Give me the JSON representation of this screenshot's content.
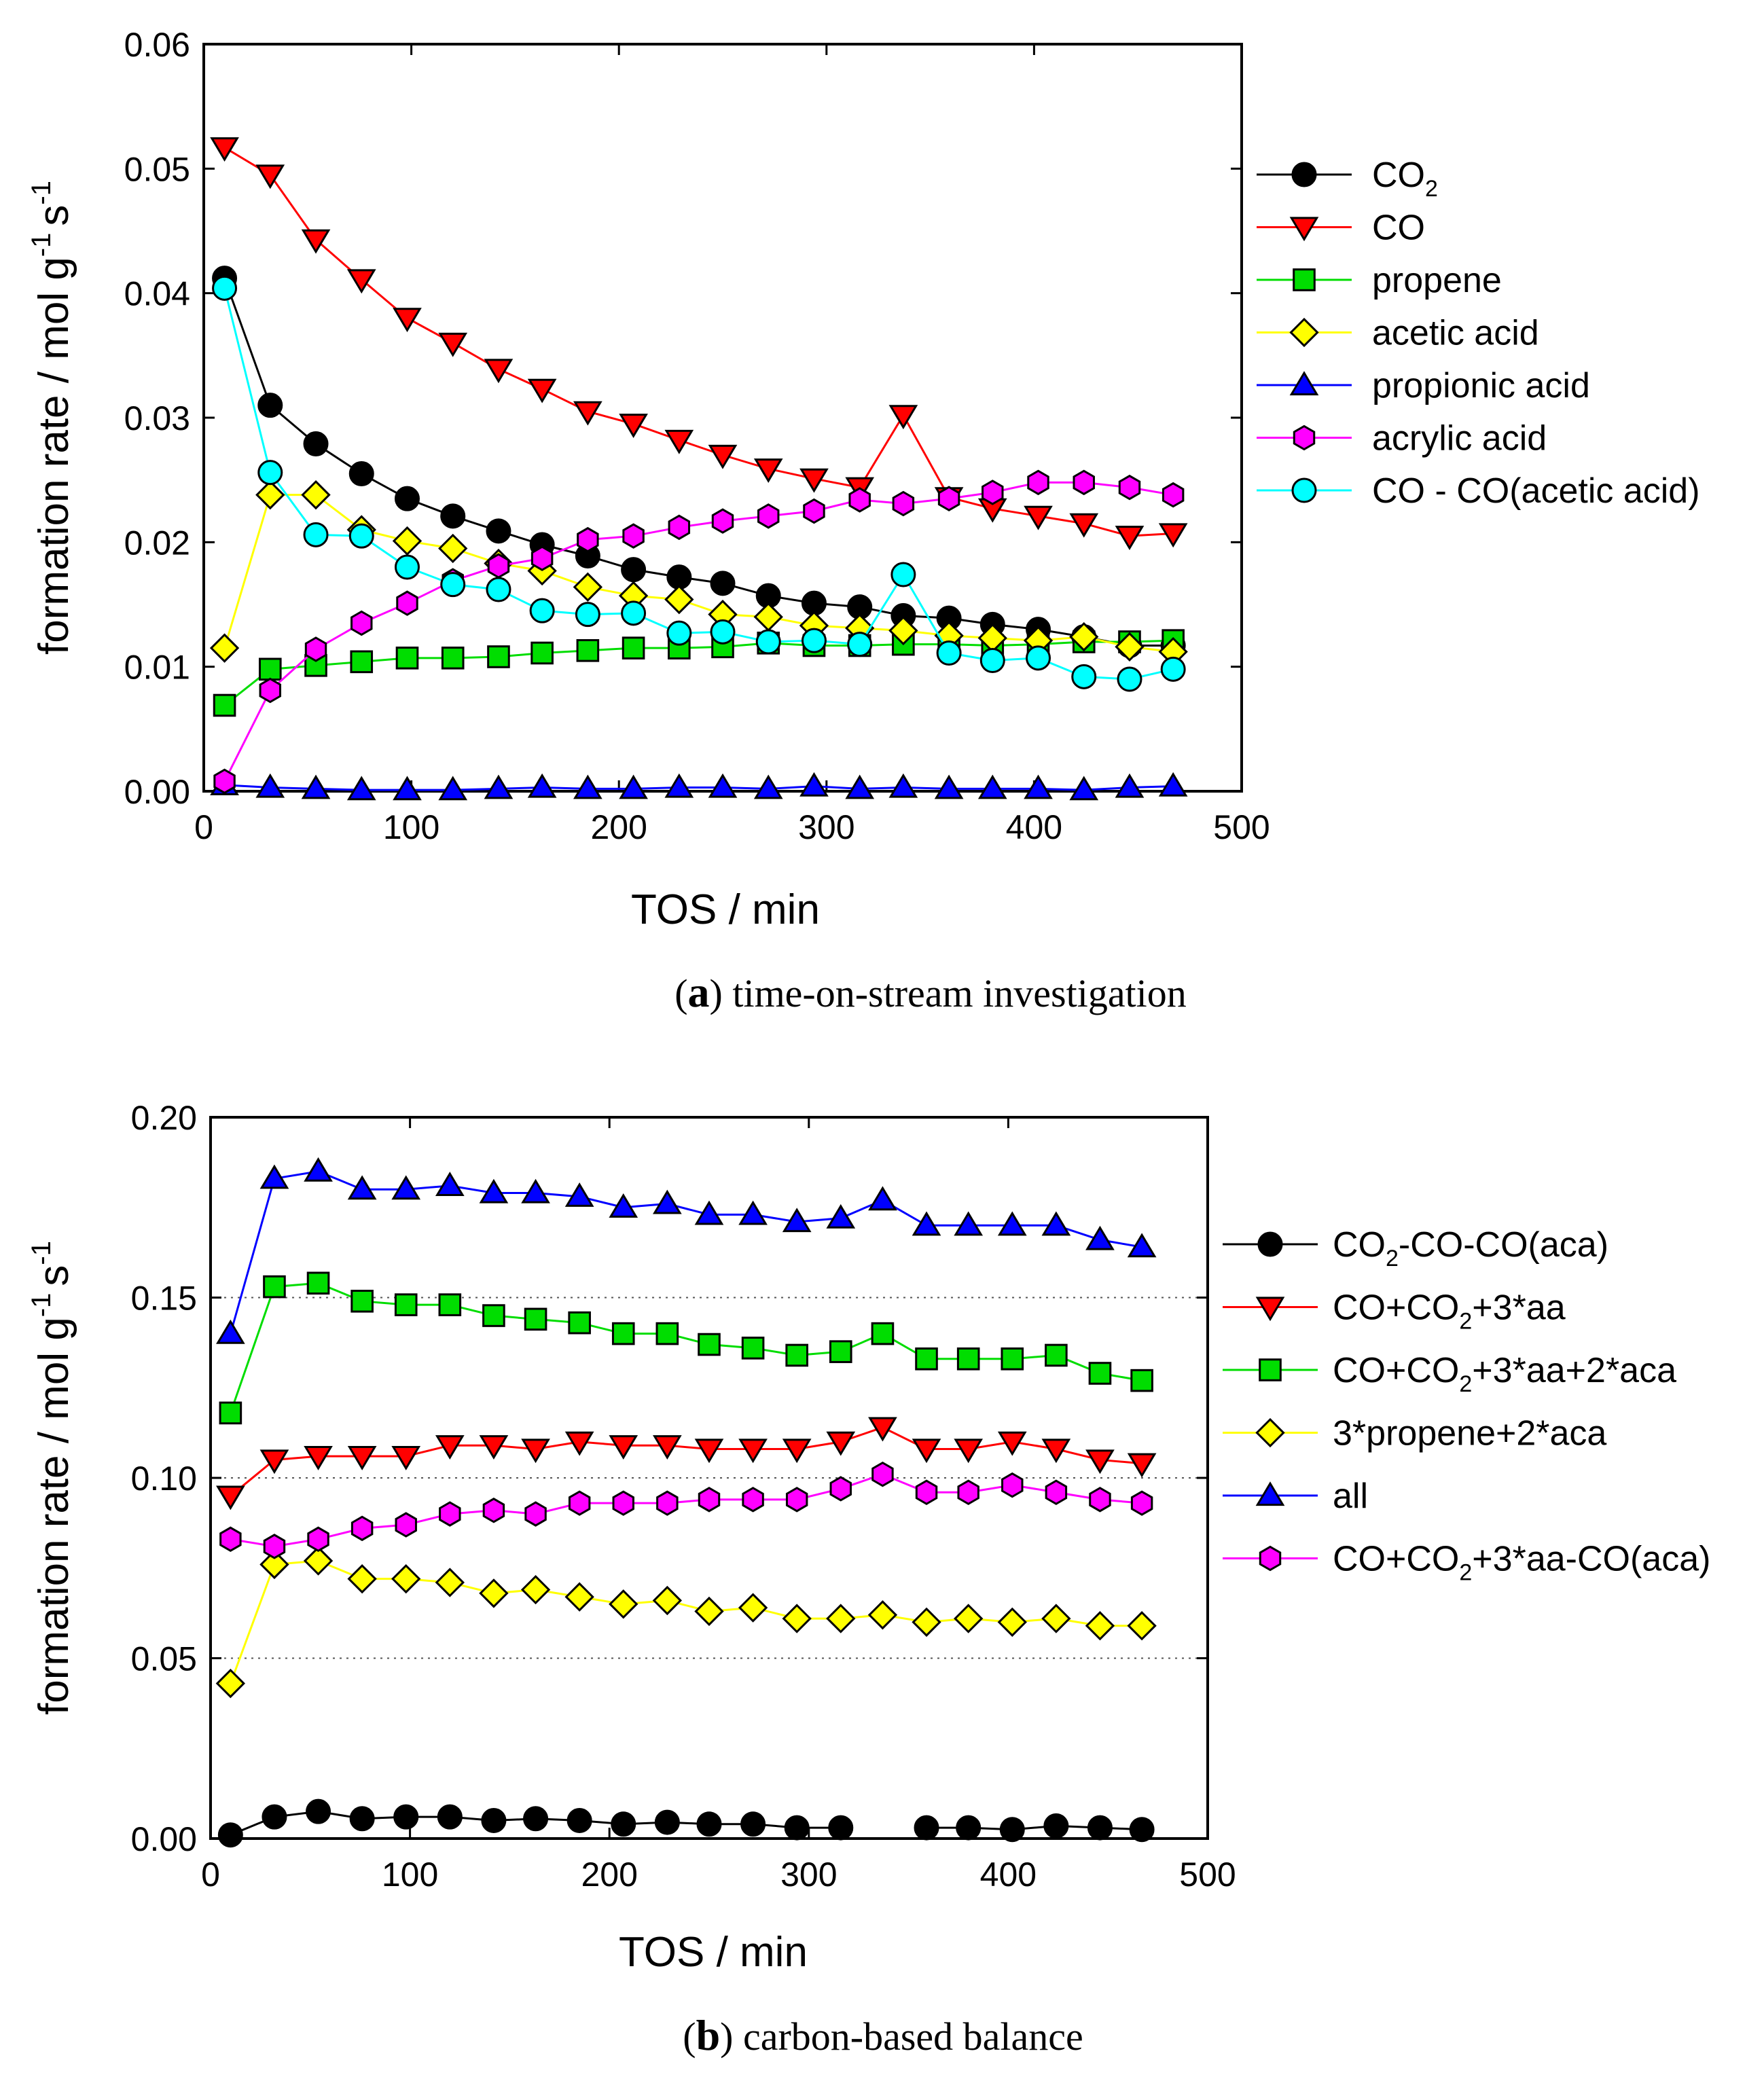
{
  "chart_data": [
    {
      "id": "a",
      "type": "line",
      "caption_letter": "a",
      "caption_text": "time-on-stream investigation",
      "xlabel": "TOS / min",
      "ylabel": "formation rate / mol g",
      "ylabel_units": [
        "-1",
        "s",
        "-1"
      ],
      "xlim": [
        0,
        500
      ],
      "ylim": [
        0,
        0.06
      ],
      "xticks": [
        "0",
        "100",
        "200",
        "300",
        "400",
        "500"
      ],
      "yticks": [
        "0.00",
        "0.01",
        "0.02",
        "0.03",
        "0.04",
        "0.05",
        "0.06"
      ],
      "legend_position": "right",
      "x": [
        10,
        32,
        54,
        76,
        98,
        120,
        142,
        163,
        185,
        207,
        229,
        250,
        272,
        294,
        316,
        337,
        359,
        380,
        402,
        424,
        446,
        467
      ],
      "series": [
        {
          "name": "CO",
          "sub": "2",
          "color": "#000000",
          "marker": "circle",
          "values": [
            0.0412,
            0.031,
            0.0279,
            0.0255,
            0.0235,
            0.0221,
            0.0209,
            0.0198,
            0.0189,
            0.0178,
            0.0172,
            0.0167,
            0.0157,
            0.0151,
            0.0148,
            0.0141,
            0.0139,
            0.0134,
            0.013,
            0.0124,
            0.0117,
            0.0117
          ]
        },
        {
          "name": "CO",
          "color": "#ff0000",
          "marker": "triangle-down",
          "values": [
            0.0517,
            0.0495,
            0.0443,
            0.0411,
            0.038,
            0.036,
            0.0339,
            0.0323,
            0.0305,
            0.0295,
            0.0282,
            0.027,
            0.0259,
            0.0251,
            0.0244,
            0.0302,
            0.0236,
            0.0227,
            0.0221,
            0.0215,
            0.0205,
            0.0207
          ]
        },
        {
          "name": "propene",
          "color": "#00dd00",
          "marker": "square",
          "values": [
            0.0069,
            0.0098,
            0.0101,
            0.0104,
            0.0107,
            0.0107,
            0.0108,
            0.0111,
            0.0113,
            0.0115,
            0.0115,
            0.0116,
            0.0119,
            0.0117,
            0.0117,
            0.0118,
            0.0118,
            0.0117,
            0.0118,
            0.012,
            0.012,
            0.0121
          ]
        },
        {
          "name": "acetic acid",
          "color": "#ffff00",
          "marker": "diamond",
          "values": [
            0.0115,
            0.0238,
            0.0238,
            0.021,
            0.0201,
            0.0195,
            0.0183,
            0.0177,
            0.0164,
            0.0157,
            0.0154,
            0.0142,
            0.014,
            0.0133,
            0.0131,
            0.0129,
            0.0125,
            0.0123,
            0.0121,
            0.0124,
            0.0116,
            0.0112
          ]
        },
        {
          "name": "propionic acid",
          "color": "#0000ff",
          "marker": "triangle-up",
          "values": [
            0.0005,
            0.0003,
            0.0002,
            0.0001,
            0.0001,
            0.0001,
            0.0002,
            0.0003,
            0.0002,
            0.0002,
            0.0003,
            0.0003,
            0.0002,
            0.0004,
            0.0002,
            0.0003,
            0.0002,
            0.0002,
            0.0002,
            0.0001,
            0.0003,
            0.0004
          ]
        },
        {
          "name": "acrylic acid",
          "color": "#ff00ff",
          "marker": "hexagon",
          "values": [
            0.0008,
            0.0081,
            0.0114,
            0.0135,
            0.0151,
            0.0169,
            0.0181,
            0.0187,
            0.0202,
            0.0205,
            0.0212,
            0.0217,
            0.0221,
            0.0225,
            0.0234,
            0.0231,
            0.0235,
            0.024,
            0.0248,
            0.0248,
            0.0244,
            0.0238
          ]
        },
        {
          "name": "CO - CO(acetic acid)",
          "color": "#00ffff",
          "marker": "circle",
          "values": [
            0.0404,
            0.0256,
            0.0206,
            0.0205,
            0.018,
            0.0166,
            0.0162,
            0.0145,
            0.0142,
            0.0143,
            0.0127,
            0.0128,
            0.012,
            0.0121,
            0.0118,
            0.0174,
            0.0111,
            0.0105,
            0.0107,
            0.0092,
            0.009,
            0.0098
          ]
        }
      ]
    },
    {
      "id": "b",
      "type": "line",
      "caption_letter": "b",
      "caption_text": "carbon-based balance",
      "xlabel": "TOS / min",
      "ylabel": "formation rate / mol g",
      "ylabel_units": [
        "-1",
        "s",
        "-1"
      ],
      "xlim": [
        0,
        500
      ],
      "ylim": [
        0,
        0.2
      ],
      "xticks": [
        "0",
        "100",
        "200",
        "300",
        "400",
        "500"
      ],
      "yticks": [
        "0.00",
        "0.05",
        "0.10",
        "0.15",
        "0.20"
      ],
      "gridlines_y": [
        0.05,
        0.1,
        0.15
      ],
      "legend_position": "right",
      "x": [
        10,
        32,
        54,
        76,
        98,
        120,
        142,
        163,
        185,
        207,
        229,
        250,
        272,
        294,
        316,
        337,
        359,
        380,
        402,
        424,
        446,
        467
      ],
      "series": [
        {
          "name": "CO2-CO-CO(aca)",
          "label_parts": [
            "CO",
            "2",
            "-CO-CO(aca)"
          ],
          "color": "#000000",
          "marker": "circle",
          "values": [
            0.001,
            0.006,
            0.0075,
            0.0055,
            0.006,
            0.006,
            0.005,
            0.0055,
            0.005,
            0.004,
            0.0045,
            0.004,
            0.004,
            0.003,
            0.003,
            null,
            0.003,
            0.003,
            0.0025,
            0.0035,
            0.003,
            0.0025
          ]
        },
        {
          "name": "CO+CO2+3*aa",
          "label_parts": [
            "CO+CO",
            "2",
            "+3*aa"
          ],
          "color": "#ff0000",
          "marker": "triangle-down",
          "values": [
            0.095,
            0.105,
            0.106,
            0.106,
            0.106,
            0.109,
            0.109,
            0.108,
            0.11,
            0.109,
            0.109,
            0.108,
            0.108,
            0.108,
            0.11,
            0.114,
            0.108,
            0.108,
            0.11,
            0.108,
            0.105,
            0.104
          ]
        },
        {
          "name": "CO+CO2+3*aa+2*aca",
          "label_parts": [
            "CO+CO",
            "2",
            "+3*aa+2*aca"
          ],
          "color": "#00dd00",
          "marker": "square",
          "values": [
            0.118,
            0.153,
            0.154,
            0.149,
            0.148,
            0.148,
            0.145,
            0.144,
            0.143,
            0.14,
            0.14,
            0.137,
            0.136,
            0.134,
            0.135,
            0.14,
            0.133,
            0.133,
            0.133,
            0.134,
            0.129,
            0.127
          ]
        },
        {
          "name": "3*propene+2*aca",
          "label_parts": [
            "3*propene+2*aca",
            "",
            ""
          ],
          "color": "#ffff00",
          "marker": "diamond",
          "values": [
            0.043,
            0.076,
            0.077,
            0.072,
            0.072,
            0.071,
            0.068,
            0.069,
            0.067,
            0.065,
            0.066,
            0.063,
            0.064,
            0.061,
            0.061,
            0.062,
            0.06,
            0.061,
            0.06,
            0.061,
            0.059,
            0.059
          ]
        },
        {
          "name": "all",
          "label_parts": [
            "all",
            "",
            ""
          ],
          "color": "#0000ff",
          "marker": "triangle-up",
          "values": [
            0.14,
            0.183,
            0.185,
            0.18,
            0.18,
            0.181,
            0.179,
            0.179,
            0.178,
            0.175,
            0.176,
            0.173,
            0.173,
            0.171,
            0.172,
            0.177,
            0.17,
            0.17,
            0.17,
            0.17,
            0.166,
            0.164
          ]
        },
        {
          "name": "CO+CO2+3*aa-CO(aca)",
          "label_parts": [
            "CO+CO",
            "2",
            "+3*aa-CO(aca)"
          ],
          "color": "#ff00ff",
          "marker": "hexagon",
          "values": [
            0.083,
            0.081,
            0.083,
            0.086,
            0.087,
            0.09,
            0.091,
            0.09,
            0.093,
            0.093,
            0.093,
            0.094,
            0.094,
            0.094,
            0.097,
            0.101,
            0.096,
            0.096,
            0.098,
            0.096,
            0.094,
            0.093
          ]
        }
      ]
    }
  ]
}
